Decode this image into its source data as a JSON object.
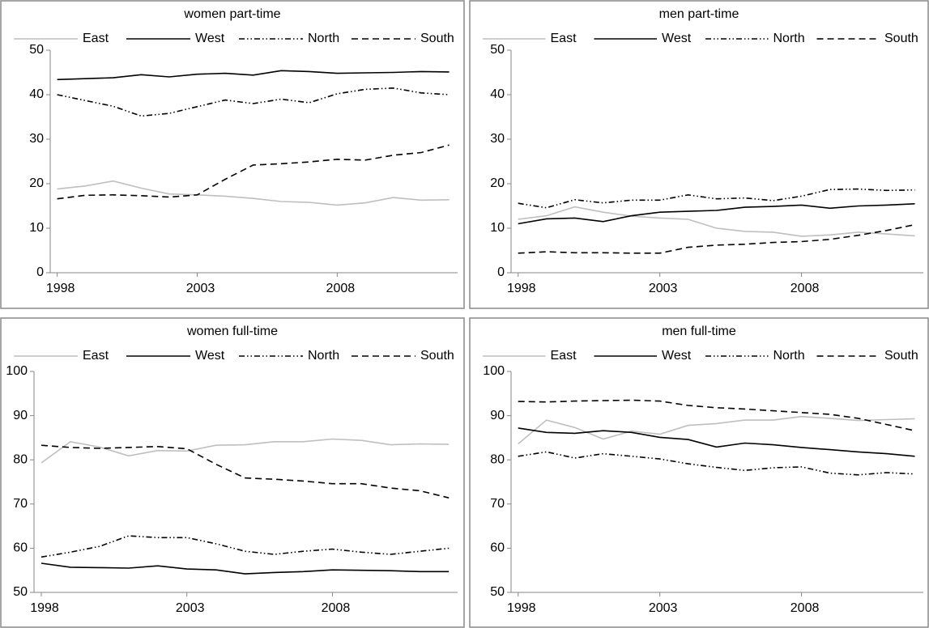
{
  "chart_data": [
    {
      "type": "line",
      "title": "women part-time",
      "x": [
        1998,
        1999,
        2000,
        2001,
        2002,
        2003,
        2004,
        2005,
        2006,
        2007,
        2008,
        2009,
        2010,
        2011,
        2012
      ],
      "xlim": [
        1997.75,
        2012.3
      ],
      "xticks": [
        1998,
        2003,
        2008
      ],
      "ylim": [
        0,
        50
      ],
      "yticks": [
        0,
        10,
        20,
        30,
        40,
        50
      ],
      "legend": "top",
      "series": [
        {
          "name": "East",
          "color": "#bfbfbf",
          "dash": "solid",
          "values": [
            18.8,
            19.5,
            20.6,
            19,
            17.7,
            17.5,
            17.2,
            16.7,
            16,
            15.8,
            15.2,
            15.7,
            16.9,
            16.3,
            16.4
          ]
        },
        {
          "name": "West",
          "color": "#000000",
          "dash": "solid",
          "values": [
            43.4,
            43.6,
            43.8,
            44.5,
            44,
            44.6,
            44.8,
            44.4,
            45.4,
            45.2,
            44.8,
            44.9,
            45,
            45.2,
            45.1
          ]
        },
        {
          "name": "North",
          "color": "#000000",
          "dash": "dash-dot-dot",
          "values": [
            40,
            38.7,
            37.4,
            35.2,
            35.8,
            37.3,
            38.8,
            38,
            39,
            38.2,
            40.2,
            41.2,
            41.5,
            40.4,
            40
          ]
        },
        {
          "name": "South",
          "color": "#000000",
          "dash": "dash",
          "values": [
            16.6,
            17.4,
            17.5,
            17.3,
            17,
            17.5,
            21,
            24.2,
            24.5,
            24.9,
            25.5,
            25.3,
            26.4,
            27,
            28.7
          ]
        }
      ]
    },
    {
      "type": "line",
      "title": "men part-time",
      "x": [
        1998,
        1999,
        2000,
        2001,
        2002,
        2003,
        2004,
        2005,
        2006,
        2007,
        2008,
        2009,
        2010,
        2011,
        2012
      ],
      "xlim": [
        1997.75,
        2012.3
      ],
      "xticks": [
        1998,
        2003,
        2008
      ],
      "ylim": [
        0,
        50
      ],
      "yticks": [
        0,
        10,
        20,
        30,
        40,
        50
      ],
      "legend": "top",
      "series": [
        {
          "name": "East",
          "color": "#bfbfbf",
          "dash": "solid",
          "values": [
            12,
            12.8,
            14.8,
            13.6,
            12.7,
            12.3,
            12,
            10,
            9.3,
            9.1,
            8.2,
            8.5,
            9.1,
            8.7,
            8.3
          ]
        },
        {
          "name": "West",
          "color": "#000000",
          "dash": "solid",
          "values": [
            11,
            12.1,
            12.3,
            11.5,
            12.8,
            13.6,
            13.8,
            14,
            14.7,
            14.9,
            15.2,
            14.5,
            15,
            15.2,
            15.5
          ]
        },
        {
          "name": "North",
          "color": "#000000",
          "dash": "dash-dot-dot",
          "values": [
            15.6,
            14.6,
            16.4,
            15.7,
            16.3,
            16.3,
            17.5,
            16.6,
            16.8,
            16.2,
            17.2,
            18.7,
            18.8,
            18.5,
            18.6
          ]
        },
        {
          "name": "South",
          "color": "#000000",
          "dash": "dash",
          "values": [
            4.4,
            4.7,
            4.5,
            4.5,
            4.4,
            4.4,
            5.7,
            6.2,
            6.4,
            6.8,
            7,
            7.5,
            8.4,
            9.5,
            10.8
          ]
        }
      ]
    },
    {
      "type": "line",
      "title": "women full-time",
      "x": [
        1998,
        1999,
        2000,
        2001,
        2002,
        2003,
        2004,
        2005,
        2006,
        2007,
        2008,
        2009,
        2010,
        2011,
        2012
      ],
      "xlim": [
        1997.75,
        2012.3
      ],
      "xticks": [
        1998,
        2003,
        2008
      ],
      "ylim": [
        50,
        100
      ],
      "yticks": [
        50,
        60,
        70,
        80,
        90,
        100
      ],
      "legend": "top",
      "series": [
        {
          "name": "East",
          "color": "#bfbfbf",
          "dash": "solid",
          "values": [
            79.3,
            84.1,
            82.9,
            80.9,
            82.1,
            82,
            83.3,
            83.4,
            84.1,
            84.1,
            84.7,
            84.4,
            83.4,
            83.6,
            83.5
          ]
        },
        {
          "name": "West",
          "color": "#000000",
          "dash": "solid",
          "values": [
            56.6,
            55.7,
            55.6,
            55.5,
            56,
            55.3,
            55.1,
            54.2,
            54.5,
            54.7,
            55.1,
            55,
            54.9,
            54.7,
            54.7
          ]
        },
        {
          "name": "North",
          "color": "#000000",
          "dash": "dash-dot-dot",
          "values": [
            58,
            59.1,
            60.4,
            62.8,
            62.4,
            62.4,
            61,
            59.3,
            58.6,
            59.3,
            59.8,
            59.1,
            58.6,
            59.3,
            60
          ]
        },
        {
          "name": "South",
          "color": "#000000",
          "dash": "dash",
          "values": [
            83.3,
            82.8,
            82.6,
            82.8,
            83,
            82.5,
            79,
            75.9,
            75.6,
            75.2,
            74.6,
            74.6,
            73.6,
            73,
            71.4
          ]
        }
      ]
    },
    {
      "type": "line",
      "title": "men full-time",
      "x": [
        1998,
        1999,
        2000,
        2001,
        2002,
        2003,
        2004,
        2005,
        2006,
        2007,
        2008,
        2009,
        2010,
        2011,
        2012
      ],
      "xlim": [
        1997.75,
        2012.3
      ],
      "xticks": [
        1998,
        2003,
        2008
      ],
      "ylim": [
        50,
        100
      ],
      "yticks": [
        50,
        60,
        70,
        80,
        90,
        100
      ],
      "legend": "top",
      "series": [
        {
          "name": "East",
          "color": "#bfbfbf",
          "dash": "solid",
          "values": [
            83.6,
            89,
            87.3,
            84.7,
            86.5,
            85.8,
            87.8,
            88.2,
            89,
            89,
            89.8,
            89.4,
            88.9,
            89.1,
            89.3
          ]
        },
        {
          "name": "West",
          "color": "#000000",
          "dash": "solid",
          "values": [
            87.2,
            86.2,
            86,
            86.6,
            86.2,
            85.1,
            84.6,
            82.9,
            83.8,
            83.4,
            82.8,
            82.3,
            81.8,
            81.4,
            80.8
          ]
        },
        {
          "name": "North",
          "color": "#000000",
          "dash": "dash-dot-dot",
          "values": [
            80.8,
            81.8,
            80.4,
            81.4,
            80.8,
            80.2,
            79.1,
            78.3,
            77.6,
            78.2,
            78.4,
            77,
            76.6,
            77.1,
            76.8
          ]
        },
        {
          "name": "South",
          "color": "#000000",
          "dash": "dash",
          "values": [
            93.2,
            93.1,
            93.3,
            93.4,
            93.5,
            93.3,
            92.3,
            91.8,
            91.5,
            91.1,
            90.7,
            90.3,
            89.4,
            88,
            86.6
          ]
        }
      ]
    }
  ]
}
